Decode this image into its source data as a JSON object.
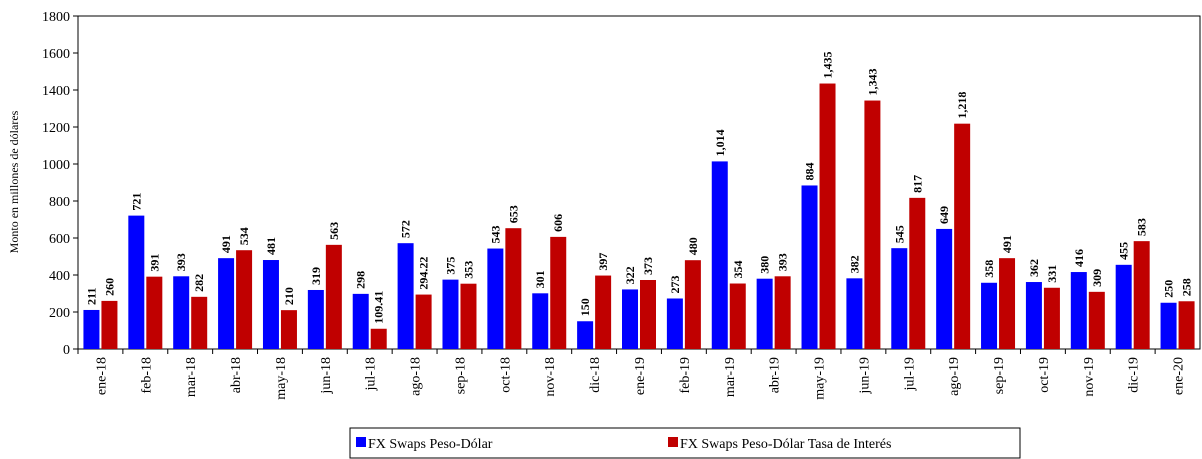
{
  "chart_data": {
    "type": "bar",
    "y_axis_label": "Monto en millones de dólares",
    "categories": [
      "ene-18",
      "feb-18",
      "mar-18",
      "abr-18",
      "may-18",
      "jun-18",
      "jul-18",
      "ago-18",
      "sep-18",
      "oct-18",
      "nov-18",
      "dic-18",
      "ene-19",
      "feb-19",
      "mar-19",
      "abr-19",
      "may-19",
      "jun-19",
      "jul-19",
      "ago-19",
      "sep-19",
      "oct-19",
      "nov-19",
      "dic-19",
      "ene-20"
    ],
    "series": [
      {
        "name": "FX Swaps Peso-Dólar",
        "color": "#0000ff",
        "values": [
          211,
          721,
          393,
          491,
          481,
          319,
          298,
          572,
          375,
          543,
          301,
          150,
          322,
          273,
          1014,
          380,
          884,
          382,
          545,
          649,
          358,
          362,
          416,
          455,
          250
        ],
        "value_labels": [
          "211",
          "721",
          "393",
          "491",
          "481",
          "319",
          "298",
          "572",
          "375",
          "543",
          "301",
          "150",
          "322",
          "273",
          "1,014",
          "380",
          "884",
          "382",
          "545",
          "649",
          "358",
          "362",
          "416",
          "455",
          "250"
        ]
      },
      {
        "name": "FX Swaps Peso-Dólar Tasa de Interés",
        "color": "#c00000",
        "values": [
          260,
          391,
          282,
          534,
          210,
          563,
          109.41,
          294.22,
          353,
          653,
          606,
          397,
          373,
          480,
          354,
          393,
          1435,
          1343,
          817,
          1218,
          491,
          331,
          309,
          583,
          258
        ],
        "value_labels": [
          "260",
          "391",
          "282",
          "534",
          "210",
          "563",
          "109.41",
          "294.22",
          "353",
          "653",
          "606",
          "397",
          "373",
          "480",
          "354",
          "393",
          "1,435",
          "1,343",
          "817",
          "1,218",
          "491",
          "331",
          "309",
          "583",
          "258"
        ]
      }
    ],
    "ylim": [
      0,
      1800
    ],
    "yticks": [
      0,
      200,
      400,
      600,
      800,
      1000,
      1200,
      1400,
      1600,
      1800
    ],
    "grid": false
  }
}
